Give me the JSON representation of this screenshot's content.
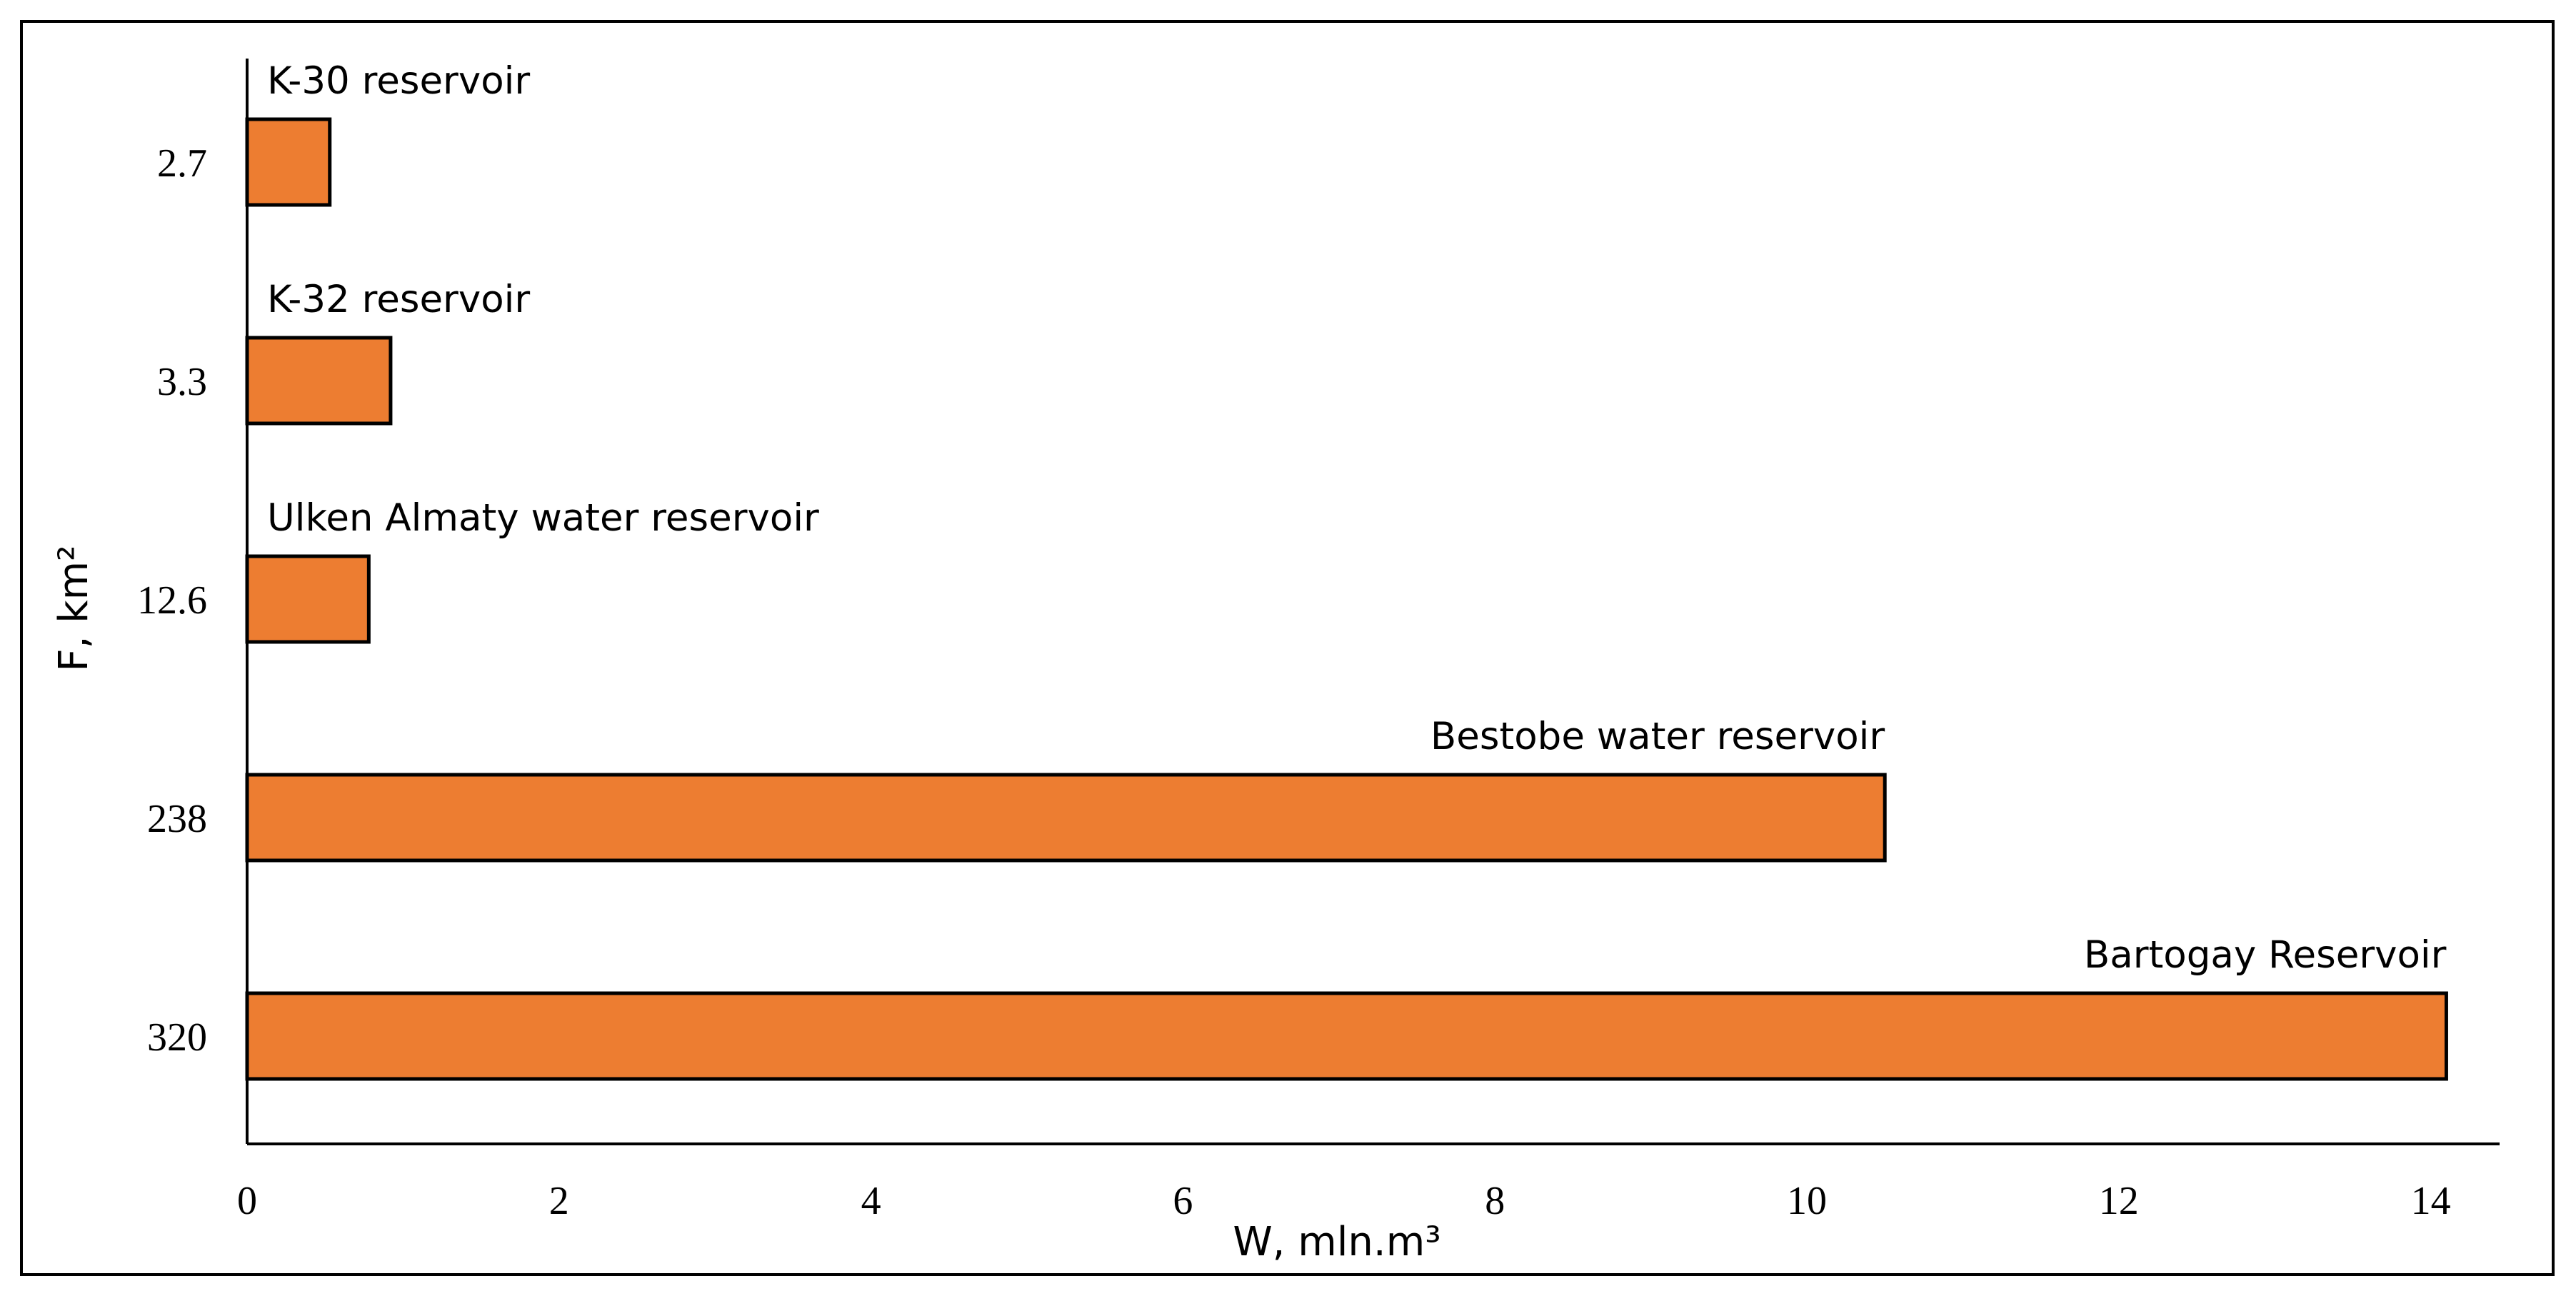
{
  "chart_data": {
    "type": "bar",
    "orientation": "horizontal",
    "categories": [
      "2.7",
      "3.3",
      "12.6",
      "238",
      "320"
    ],
    "values": [
      0.53,
      0.92,
      0.78,
      10.5,
      14.1
    ],
    "labels": [
      "K-30 reservoir",
      "K-32 reservoir",
      "Ulken Almaty water reservoir",
      "Bestobe water reservoir",
      "Bartogay Reservoir"
    ],
    "xlabel": "W, mln.m³",
    "ylabel": "F, km²",
    "xlim": [
      0,
      14.5
    ],
    "xticks": [
      "0",
      "2",
      "4",
      "6",
      "8",
      "10",
      "12",
      "14"
    ],
    "bar_color": "#ED7D31",
    "bar_outline_color": "#000000",
    "grid": false,
    "legend": "none"
  }
}
